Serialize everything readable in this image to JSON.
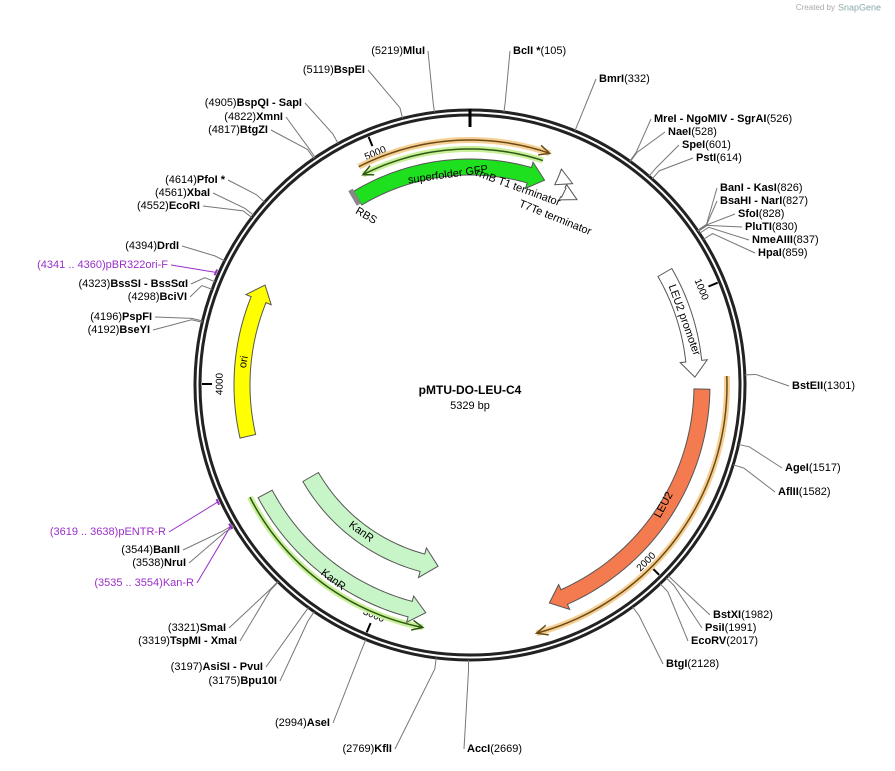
{
  "brand": "Created by",
  "brand_name": "SnapGene",
  "map": {
    "name": "pMTU-DO-LEU-C4",
    "length": 5329,
    "length_label": "5329 bp",
    "ruler": [
      1000,
      2000,
      3000,
      4000,
      5000
    ]
  },
  "enzymes": [
    {
      "name": "BclI *",
      "pos": 105,
      "site": "(105)"
    },
    {
      "name": "BmrI",
      "pos": 332,
      "site": "(332)"
    },
    {
      "name": "MreI - NgoMIV - SgrAI",
      "pos": 526,
      "site": "(526)"
    },
    {
      "name": "NaeI",
      "pos": 528,
      "site": "(528)"
    },
    {
      "name": "SpeI",
      "pos": 601,
      "site": "(601)"
    },
    {
      "name": "PstI",
      "pos": 614,
      "site": "(614)"
    },
    {
      "name": "BanI - KasI",
      "pos": 826,
      "site": "(826)"
    },
    {
      "name": "BsaHI - NarI",
      "pos": 827,
      "site": "(827)"
    },
    {
      "name": "SfoI",
      "pos": 828,
      "site": "(828)"
    },
    {
      "name": "PluTI",
      "pos": 830,
      "site": "(830)"
    },
    {
      "name": "NmeAIII",
      "pos": 837,
      "site": "(837)"
    },
    {
      "name": "HpaI",
      "pos": 859,
      "site": "(859)"
    },
    {
      "name": "BstEII",
      "pos": 1301,
      "site": "(1301)"
    },
    {
      "name": "AgeI",
      "pos": 1517,
      "site": "(1517)"
    },
    {
      "name": "AflII",
      "pos": 1582,
      "site": "(1582)"
    },
    {
      "name": "BstXI",
      "pos": 1982,
      "site": "(1982)"
    },
    {
      "name": "PsiI",
      "pos": 1991,
      "site": "(1991)"
    },
    {
      "name": "EcoRV",
      "pos": 2017,
      "site": "(2017)"
    },
    {
      "name": "BtgI",
      "pos": 2128,
      "site": "(2128)"
    },
    {
      "name": "AccI",
      "pos": 2669,
      "site": "(2669)"
    },
    {
      "name": "KflI",
      "pos": 2769,
      "site": "(2769)"
    },
    {
      "name": "AseI",
      "pos": 2994,
      "site": "(2994)"
    },
    {
      "name": "AsiSI - PvuI",
      "pos": 3197,
      "site": "(3197)"
    },
    {
      "name": "Bpu10I",
      "pos": 3175,
      "site": "(3175)"
    },
    {
      "name": "SmaI",
      "pos": 3321,
      "site": "(3321)"
    },
    {
      "name": "TspMI - XmaI",
      "pos": 3319,
      "site": "(3319)"
    },
    {
      "name": "BanII",
      "pos": 3544,
      "site": "(3544)"
    },
    {
      "name": "NruI",
      "pos": 3538,
      "site": "(3538)"
    },
    {
      "name": "BseYI",
      "pos": 4192,
      "site": "(4192)"
    },
    {
      "name": "PspFI",
      "pos": 4196,
      "site": "(4196)"
    },
    {
      "name": "BciVI",
      "pos": 4298,
      "site": "(4298)"
    },
    {
      "name": "BssSI - BssSαI",
      "pos": 4323,
      "site": "(4323)"
    },
    {
      "name": "DrdI",
      "pos": 4394,
      "site": "(4394)"
    },
    {
      "name": "EcoRI",
      "pos": 4552,
      "site": "(4552)"
    },
    {
      "name": "XbaI",
      "pos": 4561,
      "site": "(4561)"
    },
    {
      "name": "PfoI *",
      "pos": 4614,
      "site": "(4614)"
    },
    {
      "name": "BtgZI",
      "pos": 4817,
      "site": "(4817)"
    },
    {
      "name": "XmnI",
      "pos": 4822,
      "site": "(4822)"
    },
    {
      "name": "BspQI - SapI",
      "pos": 4905,
      "site": "(4905)"
    },
    {
      "name": "BspEI",
      "pos": 5119,
      "site": "(5119)"
    },
    {
      "name": "MluI",
      "pos": 5219,
      "site": "(5219)"
    }
  ],
  "primers": [
    {
      "name": "pBR322ori-F",
      "start": 4341,
      "end": 4360,
      "site": "(4341 .. 4360)"
    },
    {
      "name": "pENTR-R",
      "start": 3619,
      "end": 3638,
      "site": "(3619 .. 3638)"
    },
    {
      "name": "Kan-R",
      "start": 3535,
      "end": 3554,
      "site": "(3535 .. 3554)"
    }
  ],
  "features": [
    "superfolder GFP",
    "RBS",
    "rrnB T1 terminator",
    "T7Te terminator",
    "LEU2 promoter",
    "LEU2",
    "KanR",
    "KanR",
    "ori"
  ]
}
